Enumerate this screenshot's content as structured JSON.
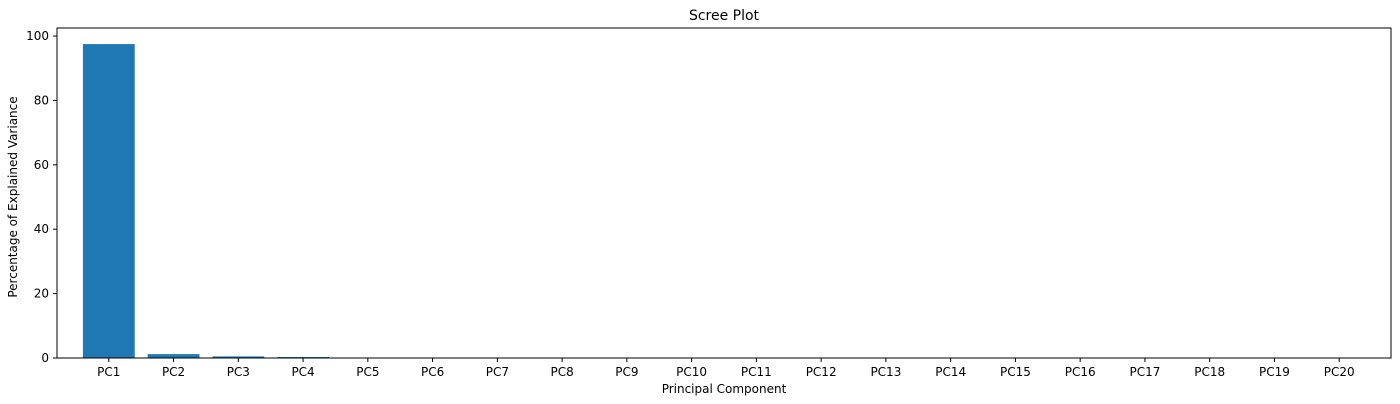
{
  "chart_data": {
    "type": "bar",
    "title": "Scree Plot",
    "xlabel": "Principal Component",
    "ylabel": "Percentage of Explained Variance",
    "categories": [
      "PC1",
      "PC2",
      "PC3",
      "PC4",
      "PC5",
      "PC6",
      "PC7",
      "PC8",
      "PC9",
      "PC10",
      "PC11",
      "PC12",
      "PC13",
      "PC14",
      "PC15",
      "PC16",
      "PC17",
      "PC18",
      "PC19",
      "PC20"
    ],
    "values": [
      97.5,
      1.2,
      0.5,
      0.3,
      0.1,
      0.1,
      0.05,
      0.05,
      0.03,
      0.03,
      0.02,
      0.02,
      0.02,
      0.01,
      0.01,
      0.01,
      0.01,
      0.0,
      0.0,
      0.0
    ],
    "ylim": [
      0,
      100
    ],
    "yticks": [
      0,
      20,
      40,
      60,
      80,
      100
    ],
    "grid": false,
    "bar_color": "#1f77b4"
  }
}
